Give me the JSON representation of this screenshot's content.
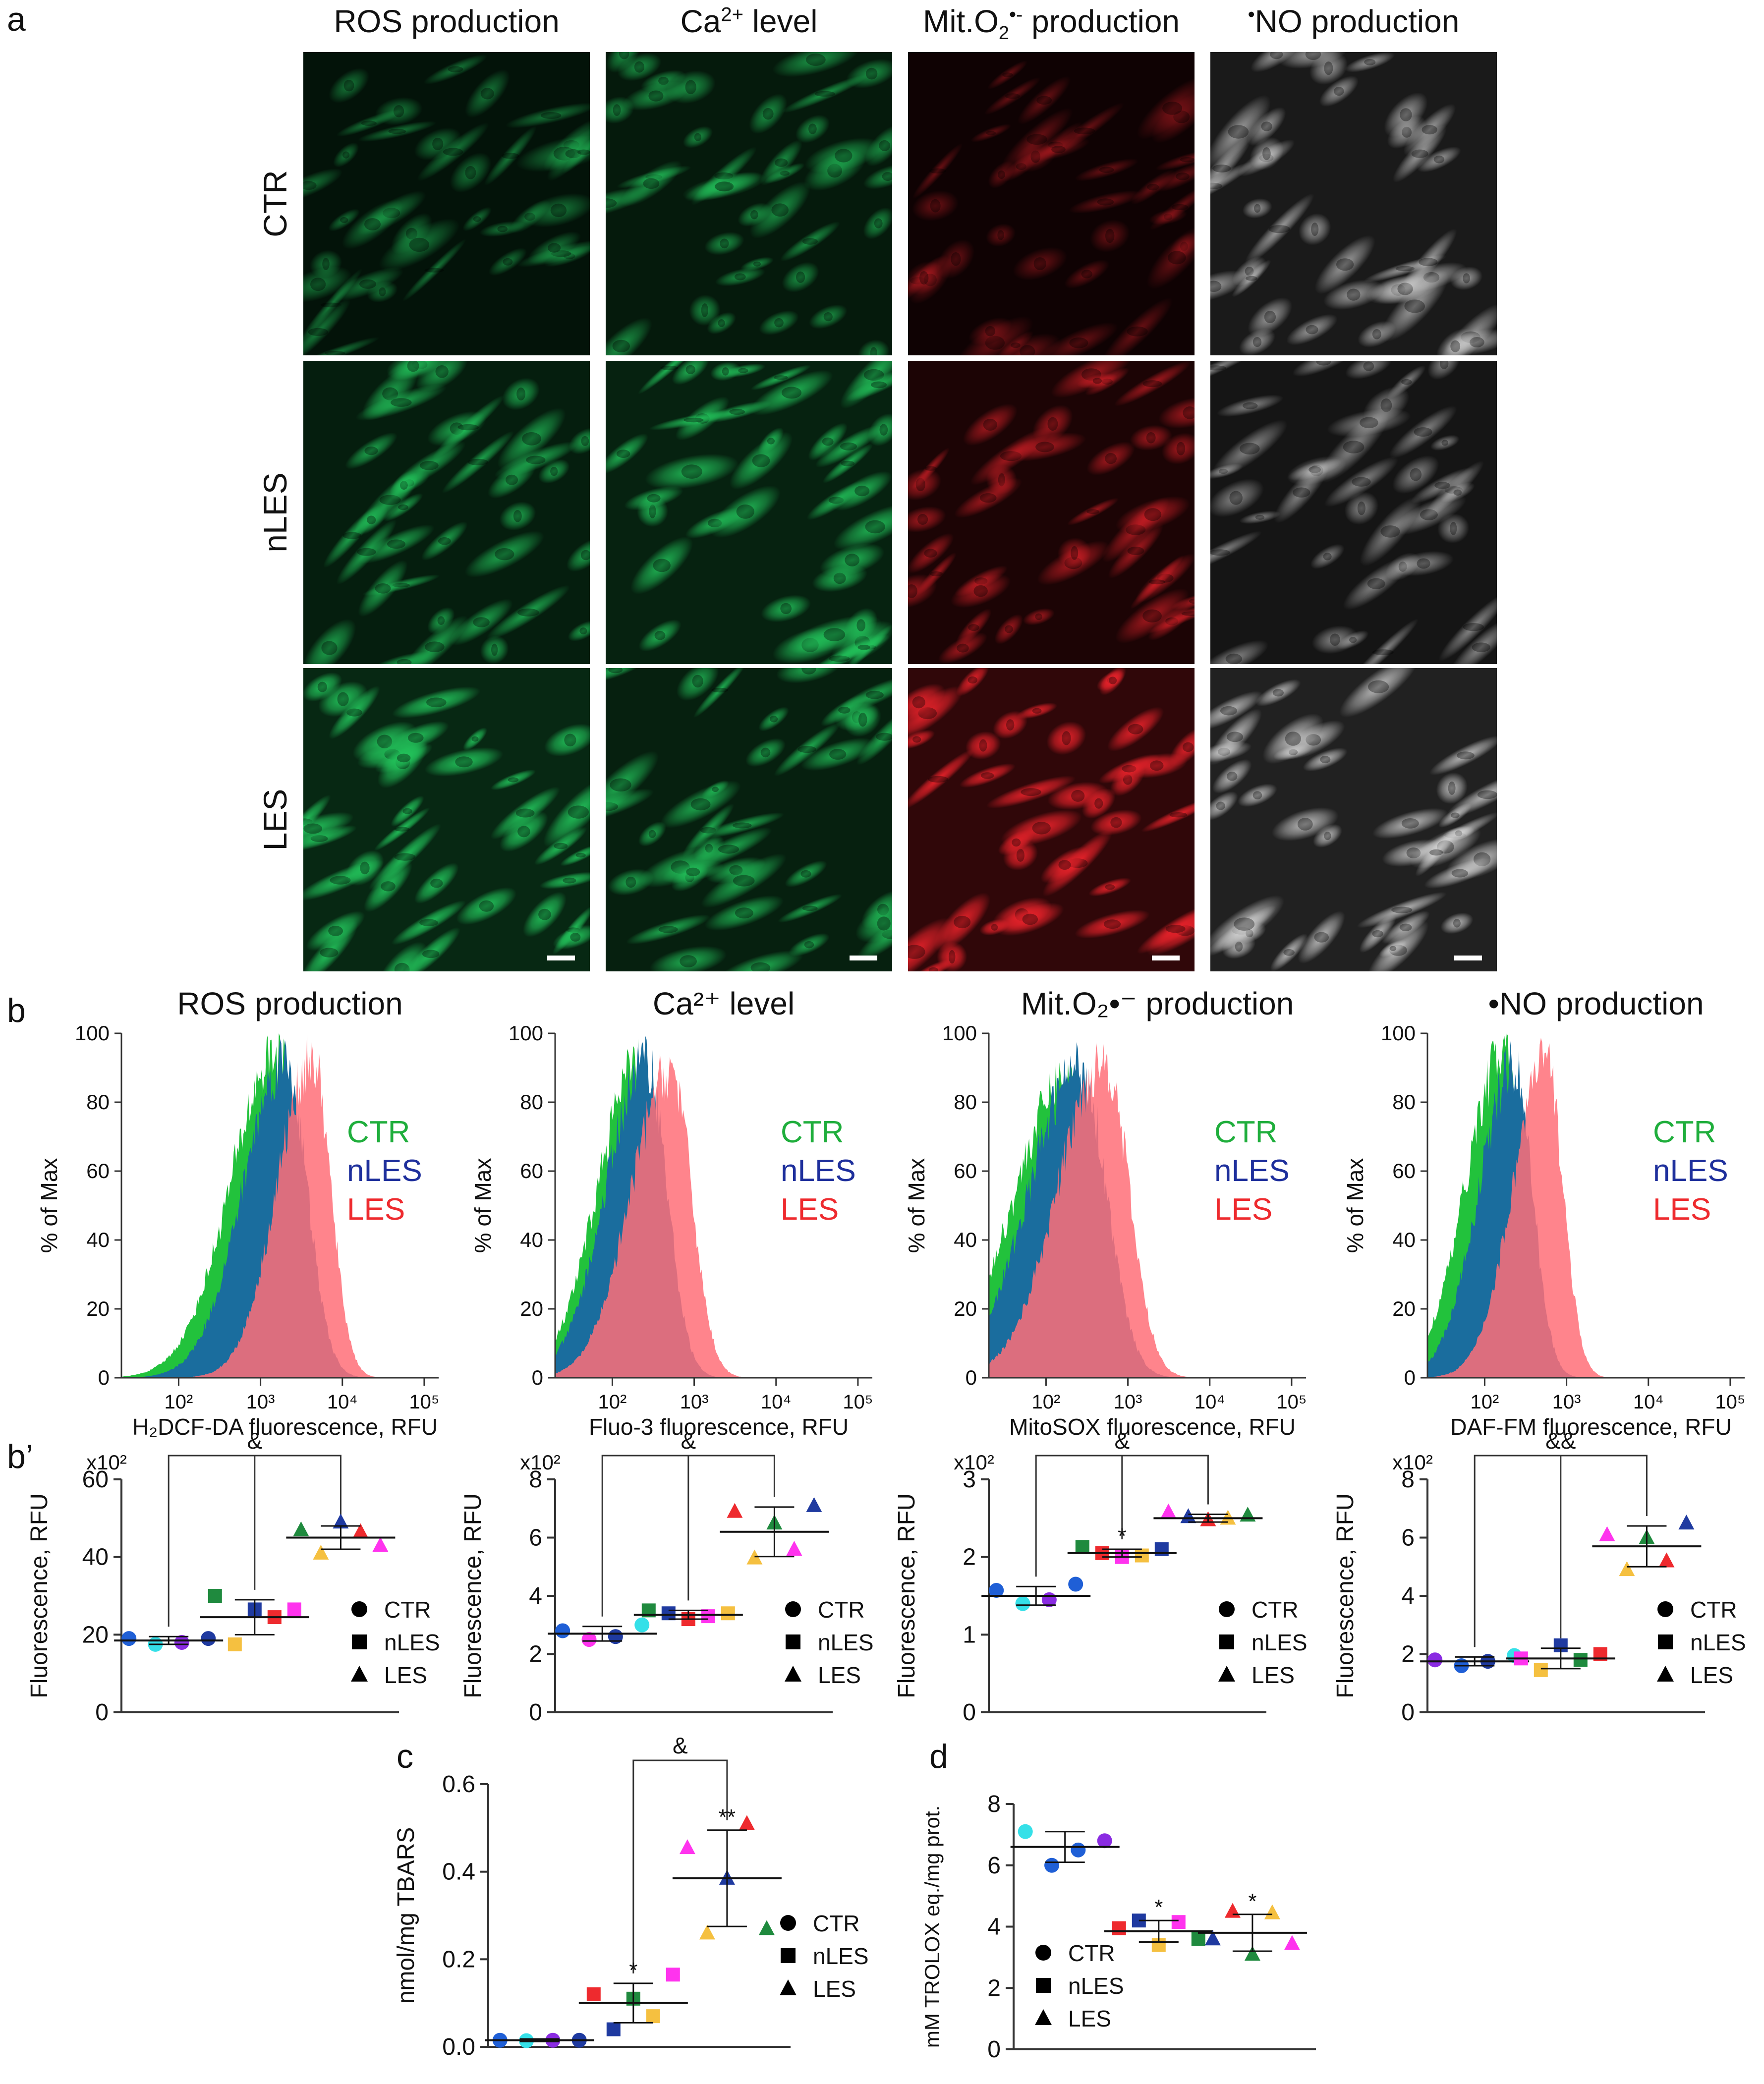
{
  "panel_labels": {
    "a": "a",
    "b": "b",
    "b_prime": "b’",
    "c": "c",
    "d": "d"
  },
  "micrograph_columns": [
    {
      "html": "ROS production"
    },
    {
      "html": "Ca<sup style=\"font-size:40px\">2+</sup> level"
    },
    {
      "html": "Mit.O<sub style=\"font-size:38px\">2</sub><sup style=\"font-size:40px\">•-</sup> production"
    },
    {
      "html": "<sup style=\"font-size:40px\">•</sup>NO production"
    }
  ],
  "micrograph_rows": [
    "CTR",
    "nLES",
    "LES"
  ],
  "micrograph_colors": [
    "#22c25a",
    "#22c25a",
    "#e8222a",
    "#d9d9d9"
  ],
  "micrograph_intensity": [
    [
      0.45,
      0.6,
      0.3,
      0.55
    ],
    [
      0.7,
      0.8,
      0.55,
      0.45
    ],
    [
      0.95,
      0.75,
      0.95,
      0.7
    ]
  ],
  "groups": [
    "CTR",
    "nLES",
    "LES"
  ],
  "group_colors": {
    "CTR": "#1fae3c",
    "nLES": "#1e2f9c",
    "LES": "#ee2a2e"
  },
  "marker_legend": [
    {
      "label": "CTR",
      "marker": "circle"
    },
    {
      "label": "nLES",
      "marker": "square"
    },
    {
      "label": "LES",
      "marker": "triangle"
    }
  ],
  "point_colors": [
    "#1f5fd6",
    "#35e0e8",
    "#8a2be2",
    "#1f3aa0",
    "#1f8a3e",
    "#f5c040",
    "#ee2a2e",
    "#ff33ee"
  ],
  "chart_data": [
    {
      "id": "b1",
      "type": "area",
      "title": "ROS production",
      "xlabel": "H₂DCF-DA fluorescence, RFU",
      "ylabel": "% of Max",
      "xscale": "log",
      "xlim": [
        20,
        150000
      ],
      "ylim": [
        0,
        100
      ],
      "xticks": [
        "10²",
        "10³",
        "10⁴",
        "10⁵"
      ],
      "yticks": [
        "0",
        "20",
        "40",
        "60",
        "80",
        "100"
      ],
      "legend_position": "right",
      "series": [
        {
          "name": "CTR",
          "peak_x": 1600,
          "peak_y": 100,
          "width": 0.42
        },
        {
          "name": "nLES",
          "peak_x": 2000,
          "peak_y": 98,
          "width": 0.38
        },
        {
          "name": "LES",
          "peak_x": 4300,
          "peak_y": 98,
          "width": 0.32
        }
      ]
    },
    {
      "id": "b2",
      "type": "area",
      "title": "Ca²⁺ level",
      "xlabel": "Fluo-3 fluorescence, RFU",
      "ylabel": "% of Max",
      "xscale": "log",
      "xlim": [
        20,
        150000
      ],
      "ylim": [
        0,
        100
      ],
      "xticks": [
        "10²",
        "10³",
        "10⁴",
        "10⁵"
      ],
      "yticks": [
        "0",
        "20",
        "40",
        "60",
        "80",
        "100"
      ],
      "legend_position": "right",
      "series": [
        {
          "name": "CTR",
          "peak_x": 200,
          "peak_y": 96,
          "width": 0.36
        },
        {
          "name": "nLES",
          "peak_x": 260,
          "peak_y": 98,
          "width": 0.36
        },
        {
          "name": "LES",
          "peak_x": 520,
          "peak_y": 95,
          "width": 0.36
        }
      ]
    },
    {
      "id": "b3",
      "type": "area",
      "title": "Mit.O₂•⁻ production",
      "xlabel": "MitoSOX fluorescence, RFU",
      "ylabel": "% of Max",
      "xscale": "log",
      "xlim": [
        20,
        150000
      ],
      "ylim": [
        0,
        100
      ],
      "xticks": [
        "10²",
        "10³",
        "10⁴",
        "10⁵"
      ],
      "yticks": [
        "0",
        "20",
        "40",
        "60",
        "80",
        "100"
      ],
      "legend_position": "right",
      "series": [
        {
          "name": "CTR",
          "peak_x": 180,
          "peak_y": 92,
          "width": 0.48
        },
        {
          "name": "nLES",
          "peak_x": 260,
          "peak_y": 96,
          "width": 0.46
        },
        {
          "name": "LES",
          "peak_x": 520,
          "peak_y": 98,
          "width": 0.42
        }
      ]
    },
    {
      "id": "b4",
      "type": "area",
      "title": "•NO production",
      "xlabel": "DAF-FM fluorescence, RFU",
      "ylabel": "% of Max",
      "xscale": "log",
      "xlim": [
        20,
        150000
      ],
      "ylim": [
        0,
        100
      ],
      "xticks": [
        "10²",
        "10³",
        "10⁴",
        "10⁵"
      ],
      "yticks": [
        "0",
        "20",
        "40",
        "60",
        "80",
        "100"
      ],
      "legend_position": "right",
      "series": [
        {
          "name": "CTR",
          "peak_x": 170,
          "peak_y": 100,
          "width": 0.34
        },
        {
          "name": "nLES",
          "peak_x": 230,
          "peak_y": 96,
          "width": 0.32
        },
        {
          "name": "LES",
          "peak_x": 560,
          "peak_y": 98,
          "width": 0.3
        }
      ]
    },
    {
      "id": "bp1",
      "type": "scatter",
      "ylabel": "Fluorescence, RFU",
      "yunit": "x10²",
      "ylim": [
        0,
        60
      ],
      "yticks": [
        0,
        20,
        40,
        60
      ],
      "bracket": {
        "from": 0,
        "mid": 1,
        "to": 2,
        "label": "&"
      },
      "groups": [
        {
          "name": "CTR",
          "mean": 18.5,
          "sd": 1.0,
          "points": [
            {
              "y": 19,
              "c": 0,
              "m": "circle"
            },
            {
              "y": 17.5,
              "c": 1,
              "m": "circle"
            },
            {
              "y": 18,
              "c": 2,
              "m": "circle"
            },
            {
              "y": 19,
              "c": 3,
              "m": "circle"
            }
          ],
          "star": ""
        },
        {
          "name": "nLES",
          "mean": 24.5,
          "sd": 4.5,
          "points": [
            {
              "y": 30,
              "c": 4,
              "m": "square"
            },
            {
              "y": 17.5,
              "c": 5,
              "m": "square"
            },
            {
              "y": 26.5,
              "c": 3,
              "m": "square"
            },
            {
              "y": 24.5,
              "c": 6,
              "m": "square"
            },
            {
              "y": 26.5,
              "c": 7,
              "m": "square"
            }
          ],
          "star": ""
        },
        {
          "name": "LES",
          "mean": 45,
          "sd": 3,
          "points": [
            {
              "y": 47,
              "c": 4,
              "m": "triangle"
            },
            {
              "y": 41,
              "c": 5,
              "m": "triangle"
            },
            {
              "y": 49,
              "c": 3,
              "m": "triangle"
            },
            {
              "y": 46.5,
              "c": 6,
              "m": "triangle"
            },
            {
              "y": 43,
              "c": 7,
              "m": "triangle"
            }
          ],
          "star": ""
        }
      ]
    },
    {
      "id": "bp2",
      "type": "scatter",
      "ylabel": "Fluorescence, RFU",
      "yunit": "x10²",
      "ylim": [
        0,
        8
      ],
      "yticks": [
        0,
        2,
        4,
        6,
        8
      ],
      "bracket": {
        "from": 0,
        "mid": 1,
        "to": 2,
        "label": "&"
      },
      "groups": [
        {
          "name": "CTR",
          "mean": 2.7,
          "sd": 0.25,
          "points": [
            {
              "y": 2.8,
              "c": 0,
              "m": "circle"
            },
            {
              "y": 2.5,
              "c": 7,
              "m": "circle"
            },
            {
              "y": 2.6,
              "c": 3,
              "m": "circle"
            },
            {
              "y": 3.0,
              "c": 1,
              "m": "circle"
            }
          ],
          "star": ""
        },
        {
          "name": "nLES",
          "mean": 3.35,
          "sd": 0.15,
          "points": [
            {
              "y": 3.5,
              "c": 4,
              "m": "square"
            },
            {
              "y": 3.4,
              "c": 3,
              "m": "square"
            },
            {
              "y": 3.2,
              "c": 6,
              "m": "square"
            },
            {
              "y": 3.3,
              "c": 7,
              "m": "square"
            },
            {
              "y": 3.4,
              "c": 5,
              "m": "square"
            }
          ],
          "star": ""
        },
        {
          "name": "LES",
          "mean": 6.2,
          "sd": 0.85,
          "points": [
            {
              "y": 6.9,
              "c": 6,
              "m": "triangle"
            },
            {
              "y": 5.3,
              "c": 5,
              "m": "triangle"
            },
            {
              "y": 6.5,
              "c": 4,
              "m": "triangle"
            },
            {
              "y": 5.6,
              "c": 7,
              "m": "triangle"
            },
            {
              "y": 7.1,
              "c": 3,
              "m": "triangle"
            }
          ],
          "star": ""
        }
      ]
    },
    {
      "id": "bp3",
      "type": "scatter",
      "ylabel": "Fluorescence, RFU",
      "yunit": "x10²",
      "ylim": [
        0,
        3
      ],
      "yticks": [
        0,
        1,
        2,
        3
      ],
      "bracket": {
        "from": 0,
        "mid": 1,
        "to": 2,
        "label": "&"
      },
      "groups": [
        {
          "name": "CTR",
          "mean": 1.5,
          "sd": 0.12,
          "points": [
            {
              "y": 1.57,
              "c": 0,
              "m": "circle"
            },
            {
              "y": 1.4,
              "c": 1,
              "m": "circle"
            },
            {
              "y": 1.45,
              "c": 2,
              "m": "circle"
            },
            {
              "y": 1.65,
              "c": 0,
              "m": "circle"
            }
          ],
          "star": ""
        },
        {
          "name": "nLES",
          "mean": 2.05,
          "sd": 0.05,
          "points": [
            {
              "y": 2.13,
              "c": 4,
              "m": "square"
            },
            {
              "y": 2.05,
              "c": 6,
              "m": "square"
            },
            {
              "y": 2.0,
              "c": 7,
              "m": "square"
            },
            {
              "y": 2.02,
              "c": 5,
              "m": "square"
            },
            {
              "y": 2.1,
              "c": 3,
              "m": "square"
            }
          ],
          "star": "*"
        },
        {
          "name": "LES",
          "mean": 2.5,
          "sd": 0.05,
          "points": [
            {
              "y": 2.58,
              "c": 7,
              "m": "triangle"
            },
            {
              "y": 2.52,
              "c": 3,
              "m": "triangle"
            },
            {
              "y": 2.48,
              "c": 6,
              "m": "triangle"
            },
            {
              "y": 2.5,
              "c": 5,
              "m": "triangle"
            },
            {
              "y": 2.54,
              "c": 4,
              "m": "triangle"
            }
          ],
          "star": ""
        }
      ]
    },
    {
      "id": "bp4",
      "type": "scatter",
      "ylabel": "Fluorescence, RFU",
      "yunit": "x10²",
      "ylim": [
        0,
        8
      ],
      "yticks": [
        0,
        2,
        4,
        6,
        8
      ],
      "bracket": {
        "from": 0,
        "mid": 1,
        "to": 2,
        "label": "&&"
      },
      "groups": [
        {
          "name": "CTR",
          "mean": 1.75,
          "sd": 0.15,
          "points": [
            {
              "y": 1.8,
              "c": 2,
              "m": "circle"
            },
            {
              "y": 1.6,
              "c": 0,
              "m": "circle"
            },
            {
              "y": 1.75,
              "c": 3,
              "m": "circle"
            },
            {
              "y": 1.95,
              "c": 1,
              "m": "circle"
            }
          ],
          "star": ""
        },
        {
          "name": "nLES",
          "mean": 1.85,
          "sd": 0.35,
          "points": [
            {
              "y": 1.85,
              "c": 7,
              "m": "square"
            },
            {
              "y": 1.45,
              "c": 5,
              "m": "square"
            },
            {
              "y": 2.3,
              "c": 3,
              "m": "square"
            },
            {
              "y": 1.8,
              "c": 4,
              "m": "square"
            },
            {
              "y": 2.0,
              "c": 6,
              "m": "square"
            }
          ],
          "star": ""
        },
        {
          "name": "LES",
          "mean": 5.7,
          "sd": 0.7,
          "points": [
            {
              "y": 6.1,
              "c": 7,
              "m": "triangle"
            },
            {
              "y": 4.9,
              "c": 5,
              "m": "triangle"
            },
            {
              "y": 6.0,
              "c": 4,
              "m": "triangle"
            },
            {
              "y": 5.2,
              "c": 6,
              "m": "triangle"
            },
            {
              "y": 6.5,
              "c": 3,
              "m": "triangle"
            }
          ],
          "star": ""
        }
      ]
    },
    {
      "id": "c",
      "type": "scatter",
      "ylabel": "nmol/mg TBARS",
      "yunit": "",
      "ylim": [
        0,
        0.6
      ],
      "yticks": [
        "0.0",
        "0.2",
        "0.4",
        "0.6"
      ],
      "bracket": {
        "from": 1,
        "mid": -1,
        "to": 2,
        "label": "&"
      },
      "groups": [
        {
          "name": "CTR",
          "mean": 0.015,
          "sd": 0.003,
          "points": [
            {
              "y": 0.015,
              "c": 0,
              "m": "circle"
            },
            {
              "y": 0.014,
              "c": 1,
              "m": "circle"
            },
            {
              "y": 0.015,
              "c": 2,
              "m": "circle"
            },
            {
              "y": 0.015,
              "c": 3,
              "m": "circle"
            }
          ],
          "star": ""
        },
        {
          "name": "nLES",
          "mean": 0.1,
          "sd": 0.045,
          "points": [
            {
              "y": 0.12,
              "c": 6,
              "m": "square"
            },
            {
              "y": 0.04,
              "c": 3,
              "m": "square"
            },
            {
              "y": 0.11,
              "c": 4,
              "m": "square"
            },
            {
              "y": 0.07,
              "c": 5,
              "m": "square"
            },
            {
              "y": 0.165,
              "c": 7,
              "m": "square"
            }
          ],
          "star": "*"
        },
        {
          "name": "LES",
          "mean": 0.385,
          "sd": 0.11,
          "points": [
            {
              "y": 0.455,
              "c": 7,
              "m": "triangle"
            },
            {
              "y": 0.26,
              "c": 5,
              "m": "triangle"
            },
            {
              "y": 0.385,
              "c": 3,
              "m": "triangle"
            },
            {
              "y": 0.51,
              "c": 6,
              "m": "triangle"
            },
            {
              "y": 0.27,
              "c": 4,
              "m": "triangle"
            }
          ],
          "star": "**"
        }
      ]
    },
    {
      "id": "d",
      "type": "scatter",
      "ylabel": "mM TROLOX eq./mg prot.",
      "yunit": "",
      "ylim": [
        0,
        8
      ],
      "yticks": [
        0,
        2,
        4,
        6,
        8
      ],
      "bracket": null,
      "groups": [
        {
          "name": "CTR",
          "mean": 6.6,
          "sd": 0.5,
          "points": [
            {
              "y": 7.1,
              "c": 1,
              "m": "circle"
            },
            {
              "y": 6.0,
              "c": 0,
              "m": "circle"
            },
            {
              "y": 6.5,
              "c": 0,
              "m": "circle"
            },
            {
              "y": 6.8,
              "c": 2,
              "m": "circle"
            }
          ],
          "star": ""
        },
        {
          "name": "nLES",
          "mean": 3.85,
          "sd": 0.35,
          "points": [
            {
              "y": 3.95,
              "c": 6,
              "m": "square"
            },
            {
              "y": 4.2,
              "c": 3,
              "m": "square"
            },
            {
              "y": 3.4,
              "c": 5,
              "m": "square"
            },
            {
              "y": 4.15,
              "c": 7,
              "m": "square"
            },
            {
              "y": 3.6,
              "c": 4,
              "m": "square"
            }
          ],
          "star": "*"
        },
        {
          "name": "LES",
          "mean": 3.8,
          "sd": 0.6,
          "points": [
            {
              "y": 3.6,
              "c": 3,
              "m": "triangle"
            },
            {
              "y": 4.5,
              "c": 6,
              "m": "triangle"
            },
            {
              "y": 3.1,
              "c": 4,
              "m": "triangle"
            },
            {
              "y": 4.45,
              "c": 5,
              "m": "triangle"
            },
            {
              "y": 3.45,
              "c": 7,
              "m": "triangle"
            }
          ],
          "star": "*"
        }
      ]
    }
  ]
}
